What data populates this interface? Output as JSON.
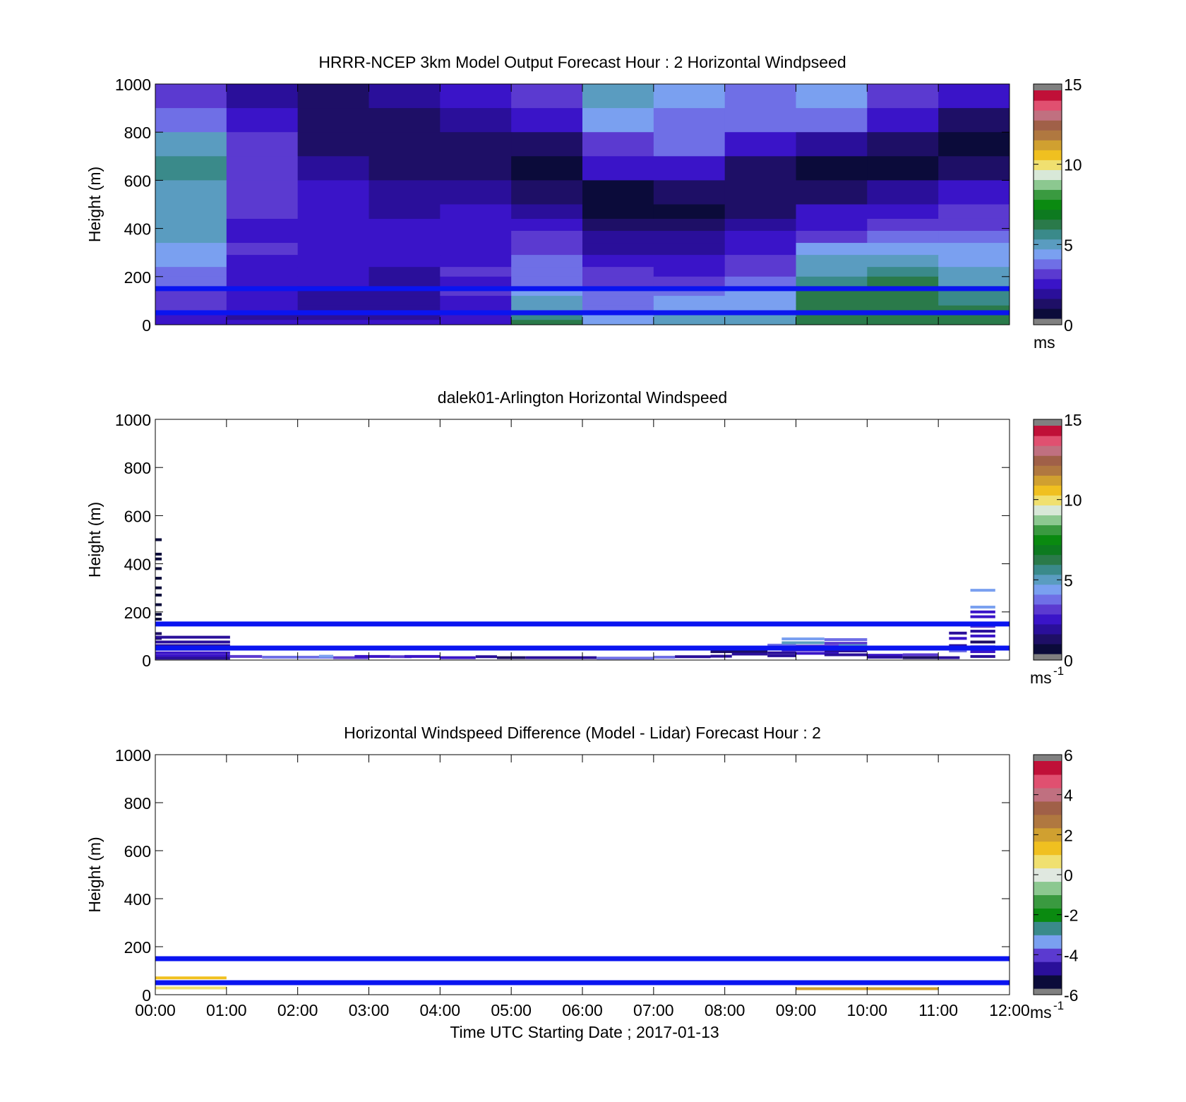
{
  "colors": {
    "guide_line": "#0a14f0",
    "missing": "#808080",
    "speed_scale": [
      "#0b0b3a",
      "#1e0f66",
      "#2a0f9a",
      "#3a14c8",
      "#5b3ad0",
      "#6f6fe6",
      "#7aa0f0",
      "#5a9cc0",
      "#3a8a8a",
      "#2a7a4a",
      "#0d7a20",
      "#0a8a10",
      "#3a9a40",
      "#8cc890",
      "#d8e8d8",
      "#f0e070",
      "#f0c020",
      "#d0a030",
      "#b07840",
      "#a06048",
      "#c07080",
      "#e05070",
      "#c01038"
    ],
    "diff_scale": [
      "#0b0b3a",
      "#2a0f9a",
      "#5b3ad0",
      "#7aa0f0",
      "#3a8a8a",
      "#0a8a10",
      "#3a9a40",
      "#8cc890",
      "#e0e8e0",
      "#f0e070",
      "#f0c020",
      "#d0a030",
      "#b07840",
      "#a06048",
      "#c07080",
      "#e05070",
      "#c01038"
    ]
  },
  "chart_data": [
    {
      "type": "heatmap",
      "title": "HRRR-NCEP 3km Model Output   Forecast Hour : 2 Horizontal Windpseed",
      "xlabel": "",
      "ylabel": "Height (m)",
      "xlim": [
        0,
        12
      ],
      "ylim": [
        0,
        1000
      ],
      "yticks": [
        "0",
        "200",
        "400",
        "600",
        "800",
        "1000"
      ],
      "xticks": [
        "",
        "",
        "",
        "",
        "",
        "",
        "",
        "",
        "",
        "",
        "",
        "",
        ""
      ],
      "guide_lines_m": [
        150,
        50
      ],
      "colorbar": {
        "label": "ms",
        "label_sup": "",
        "ticks": [
          "0",
          "5",
          "10",
          "15"
        ],
        "range": [
          0,
          15
        ]
      },
      "x": [
        0,
        1,
        2,
        3,
        4,
        5,
        6,
        7,
        8,
        9,
        10,
        11
      ],
      "heights": [
        1000,
        900,
        800,
        700,
        600,
        500,
        440,
        390,
        340,
        290,
        240,
        200,
        160,
        120,
        80,
        40,
        20
      ],
      "values": [
        [
          2.8,
          1.6,
          1.0,
          1.8,
          2.2,
          2.7,
          5.0,
          4.4,
          3.5,
          4.2,
          2.9,
          2.2
        ],
        [
          3.9,
          2.1,
          0.8,
          1.3,
          1.7,
          2.0,
          4.1,
          3.7,
          3.3,
          3.4,
          2.1,
          1.3
        ],
        [
          4.9,
          2.7,
          1.1,
          0.9,
          1.3,
          1.0,
          2.9,
          3.3,
          2.1,
          1.9,
          1.1,
          0.3
        ],
        [
          5.3,
          2.9,
          1.8,
          1.3,
          1.2,
          0.5,
          2.0,
          2.1,
          1.1,
          0.2,
          0.5,
          1.0
        ],
        [
          4.9,
          2.9,
          2.3,
          1.7,
          1.8,
          1.0,
          0.6,
          0.9,
          1.0,
          1.2,
          1.6,
          2.2
        ],
        [
          4.9,
          2.9,
          2.3,
          1.9,
          2.0,
          1.5,
          0.5,
          0.5,
          1.2,
          2.0,
          2.2,
          2.7
        ],
        [
          4.6,
          2.6,
          2.6,
          2.0,
          2.0,
          2.1,
          1.2,
          1.3,
          1.7,
          2.6,
          2.9,
          3.2
        ],
        [
          4.6,
          2.6,
          2.6,
          2.0,
          2.3,
          2.7,
          1.5,
          1.5,
          2.2,
          3.2,
          3.4,
          3.5
        ],
        [
          4.2,
          2.7,
          2.4,
          2.0,
          2.4,
          3.0,
          1.8,
          1.8,
          2.6,
          4.2,
          4.0,
          4.0
        ],
        [
          4.0,
          2.4,
          2.2,
          2.0,
          2.6,
          3.4,
          2.6,
          2.4,
          3.0,
          4.6,
          4.6,
          4.4
        ],
        [
          3.6,
          2.3,
          2.2,
          1.8,
          2.8,
          3.5,
          2.8,
          2.6,
          3.2,
          5.2,
          5.8,
          4.6
        ],
        [
          3.4,
          2.2,
          2.0,
          1.6,
          2.6,
          3.8,
          3.0,
          3.0,
          3.4,
          5.6,
          6.0,
          5.0
        ],
        [
          2.8,
          2.1,
          1.9,
          1.6,
          2.7,
          4.4,
          3.5,
          3.8,
          4.0,
          6.0,
          6.2,
          5.6
        ],
        [
          2.9,
          2.0,
          1.8,
          1.5,
          2.6,
          4.6,
          3.5,
          4.1,
          4.2,
          6.0,
          6.2,
          5.8
        ],
        [
          2.8,
          2.0,
          1.7,
          1.4,
          2.2,
          5.2,
          3.8,
          4.4,
          4.5,
          6.2,
          6.3,
          6.0
        ],
        [
          2.4,
          1.9,
          1.7,
          1.4,
          2.0,
          5.5,
          4.0,
          4.6,
          4.8,
          6.2,
          6.3,
          6.0
        ],
        [
          2.6,
          2.0,
          2.1,
          2.2,
          2.4,
          6.0,
          4.2,
          4.8,
          5.0,
          6.3,
          6.3,
          6.2
        ]
      ]
    },
    {
      "type": "heatmap",
      "title": "dalek01-Arlington  Horizontal Windspeed",
      "xlabel": "",
      "ylabel": "Height (m)",
      "xlim": [
        0,
        12
      ],
      "ylim": [
        0,
        1000
      ],
      "yticks": [
        "0",
        "200",
        "400",
        "600",
        "800",
        "1000"
      ],
      "xticks": [
        "",
        "",
        "",
        "",
        "",
        "",
        "",
        "",
        "",
        "",
        "",
        "",
        ""
      ],
      "guide_lines_m": [
        150,
        50
      ],
      "colorbar": {
        "label": "ms",
        "label_sup": "-1",
        "ticks": [
          "0",
          "5",
          "10",
          "15"
        ],
        "range": [
          0,
          15
        ]
      },
      "segments": [
        {
          "t0": 0.0,
          "t1": 0.09,
          "h": 500,
          "v": 0.5
        },
        {
          "t0": 0.0,
          "t1": 0.09,
          "h": 440,
          "v": 0.4
        },
        {
          "t0": 0.0,
          "t1": 0.09,
          "h": 420,
          "v": 0.6
        },
        {
          "t0": 0.0,
          "t1": 0.09,
          "h": 380,
          "v": 0.3
        },
        {
          "t0": 0.0,
          "t1": 0.09,
          "h": 340,
          "v": 0.5
        },
        {
          "t0": 0.0,
          "t1": 0.09,
          "h": 300,
          "v": 0.3
        },
        {
          "t0": 0.0,
          "t1": 0.09,
          "h": 270,
          "v": 0.4
        },
        {
          "t0": 0.0,
          "t1": 0.09,
          "h": 230,
          "v": 0.5
        },
        {
          "t0": 0.0,
          "t1": 0.09,
          "h": 190,
          "v": 0.3
        },
        {
          "t0": 0.0,
          "t1": 0.09,
          "h": 170,
          "v": 0.6
        },
        {
          "t0": 0.0,
          "t1": 0.09,
          "h": 110,
          "v": 1.0
        },
        {
          "t0": 0.0,
          "t1": 0.09,
          "h": 90,
          "v": 1.2
        },
        {
          "t0": 0.0,
          "t1": 1.05,
          "h": 95,
          "v": 1.8
        },
        {
          "t0": 0.0,
          "t1": 1.05,
          "h": 75,
          "v": 1.5
        },
        {
          "t0": 0.0,
          "t1": 1.05,
          "h": 60,
          "v": 1.7
        },
        {
          "t0": 0.0,
          "t1": 1.05,
          "h": 45,
          "v": 1.6
        },
        {
          "t0": 0.0,
          "t1": 1.05,
          "h": 30,
          "v": 2.0
        },
        {
          "t0": 0.0,
          "t1": 1.05,
          "h": 18,
          "v": 2.2
        },
        {
          "t0": 0.0,
          "t1": 1.05,
          "h": 8,
          "v": 1.4
        },
        {
          "t0": 1.05,
          "t1": 1.5,
          "h": 15,
          "v": 3.0
        },
        {
          "t0": 1.5,
          "t1": 2.0,
          "h": 12,
          "v": 3.4
        },
        {
          "t0": 2.0,
          "t1": 2.5,
          "h": 12,
          "v": 3.3
        },
        {
          "t0": 2.3,
          "t1": 2.5,
          "h": 16,
          "v": 4.2
        },
        {
          "t0": 2.5,
          "t1": 3.0,
          "h": 10,
          "v": 2.8
        },
        {
          "t0": 2.8,
          "t1": 3.3,
          "h": 15,
          "v": 2.5
        },
        {
          "t0": 3.3,
          "t1": 3.6,
          "h": 14,
          "v": 2.9
        },
        {
          "t0": 3.5,
          "t1": 4.0,
          "h": 15,
          "v": 2.4
        },
        {
          "t0": 4.0,
          "t1": 4.5,
          "h": 10,
          "v": 2.0
        },
        {
          "t0": 4.5,
          "t1": 4.8,
          "h": 14,
          "v": 1.6
        },
        {
          "t0": 4.8,
          "t1": 5.2,
          "h": 10,
          "v": 1.0
        },
        {
          "t0": 5.2,
          "t1": 6.2,
          "h": 10,
          "v": 1.7
        },
        {
          "t0": 6.2,
          "t1": 7.0,
          "h": 8,
          "v": 3.5
        },
        {
          "t0": 7.0,
          "t1": 7.3,
          "h": 12,
          "v": 3.3
        },
        {
          "t0": 7.3,
          "t1": 7.8,
          "h": 14,
          "v": 1.5
        },
        {
          "t0": 7.8,
          "t1": 8.1,
          "h": 16,
          "v": 1.8
        },
        {
          "t0": 7.8,
          "t1": 8.6,
          "h": 35,
          "v": 1.2
        },
        {
          "t0": 8.1,
          "t1": 8.6,
          "h": 25,
          "v": 1.6
        },
        {
          "t0": 8.6,
          "t1": 9.0,
          "h": 50,
          "v": 1.3
        },
        {
          "t0": 8.6,
          "t1": 9.0,
          "h": 62,
          "v": 3.8
        },
        {
          "t0": 8.6,
          "t1": 9.0,
          "h": 30,
          "v": 1.9
        },
        {
          "t0": 8.6,
          "t1": 9.0,
          "h": 18,
          "v": 1.6
        },
        {
          "t0": 8.8,
          "t1": 9.4,
          "h": 88,
          "v": 4.4
        },
        {
          "t0": 8.8,
          "t1": 9.4,
          "h": 72,
          "v": 5.0
        },
        {
          "t0": 8.8,
          "t1": 9.4,
          "h": 42,
          "v": 2.6
        },
        {
          "t0": 9.0,
          "t1": 9.6,
          "h": 58,
          "v": 3.2
        },
        {
          "t0": 9.0,
          "t1": 9.6,
          "h": 28,
          "v": 2.2
        },
        {
          "t0": 9.4,
          "t1": 10.0,
          "h": 85,
          "v": 3.6
        },
        {
          "t0": 9.4,
          "t1": 10.0,
          "h": 70,
          "v": 2.8
        },
        {
          "t0": 9.4,
          "t1": 10.0,
          "h": 52,
          "v": 0.6
        },
        {
          "t0": 9.4,
          "t1": 10.0,
          "h": 38,
          "v": 1.5
        },
        {
          "t0": 9.4,
          "t1": 10.0,
          "h": 22,
          "v": 1.8
        },
        {
          "t0": 9.6,
          "t1": 10.0,
          "h": 60,
          "v": 5.2
        },
        {
          "t0": 10.0,
          "t1": 10.5,
          "h": 20,
          "v": 2.4
        },
        {
          "t0": 10.0,
          "t1": 10.5,
          "h": 12,
          "v": 1.9
        },
        {
          "t0": 10.5,
          "t1": 11.0,
          "h": 22,
          "v": 3.1
        },
        {
          "t0": 10.5,
          "t1": 11.0,
          "h": 10,
          "v": 1.3
        },
        {
          "t0": 11.0,
          "t1": 11.3,
          "h": 10,
          "v": 1.7
        },
        {
          "t0": 11.15,
          "t1": 11.4,
          "h": 112,
          "v": 1.8
        },
        {
          "t0": 11.15,
          "t1": 11.4,
          "h": 90,
          "v": 2.2
        },
        {
          "t0": 11.15,
          "t1": 11.4,
          "h": 60,
          "v": 1.4
        },
        {
          "t0": 11.15,
          "t1": 11.4,
          "h": 38,
          "v": 3.5
        },
        {
          "t0": 11.45,
          "t1": 11.8,
          "h": 290,
          "v": 4.0
        },
        {
          "t0": 11.45,
          "t1": 11.8,
          "h": 220,
          "v": 4.4
        },
        {
          "t0": 11.45,
          "t1": 11.8,
          "h": 200,
          "v": 2.4
        },
        {
          "t0": 11.45,
          "t1": 11.8,
          "h": 180,
          "v": 2.0
        },
        {
          "t0": 11.45,
          "t1": 11.8,
          "h": 140,
          "v": 2.8
        },
        {
          "t0": 11.45,
          "t1": 11.8,
          "h": 120,
          "v": 1.8
        },
        {
          "t0": 11.45,
          "t1": 11.8,
          "h": 100,
          "v": 2.4
        },
        {
          "t0": 11.45,
          "t1": 11.8,
          "h": 75,
          "v": 1.2
        },
        {
          "t0": 11.45,
          "t1": 11.8,
          "h": 55,
          "v": 2.0
        },
        {
          "t0": 11.45,
          "t1": 11.8,
          "h": 35,
          "v": 2.6
        },
        {
          "t0": 11.45,
          "t1": 11.8,
          "h": 15,
          "v": 1.5
        }
      ]
    },
    {
      "type": "heatmap",
      "title": "Horizontal Windspeed Difference (Model - Lidar) Forecast Hour : 2",
      "xlabel": "Time UTC  Starting Date ; 2017-01-13",
      "ylabel": "Height (m)",
      "xlim": [
        0,
        12
      ],
      "ylim": [
        0,
        1000
      ],
      "yticks": [
        "0",
        "200",
        "400",
        "600",
        "800",
        "1000"
      ],
      "xticks": [
        "00:00",
        "01:00",
        "02:00",
        "03:00",
        "04:00",
        "05:00",
        "06:00",
        "07:00",
        "08:00",
        "09:00",
        "10:00",
        "11:00",
        "12:00"
      ],
      "guide_lines_m": [
        150,
        50
      ],
      "colorbar": {
        "label": "ms",
        "label_sup": "-1",
        "ticks": [
          "-6",
          "-4",
          "-2",
          "0",
          "2",
          "4",
          "6"
        ],
        "range": [
          -6,
          6
        ]
      },
      "segments": [
        {
          "t0": 0.0,
          "t1": 1.0,
          "h": 70,
          "v": 1.6
        },
        {
          "t0": 0.0,
          "t1": 1.0,
          "h": 28,
          "v": 0.8
        },
        {
          "t0": 9.0,
          "t1": 11.0,
          "h": 25,
          "v": 2.4
        }
      ]
    }
  ]
}
